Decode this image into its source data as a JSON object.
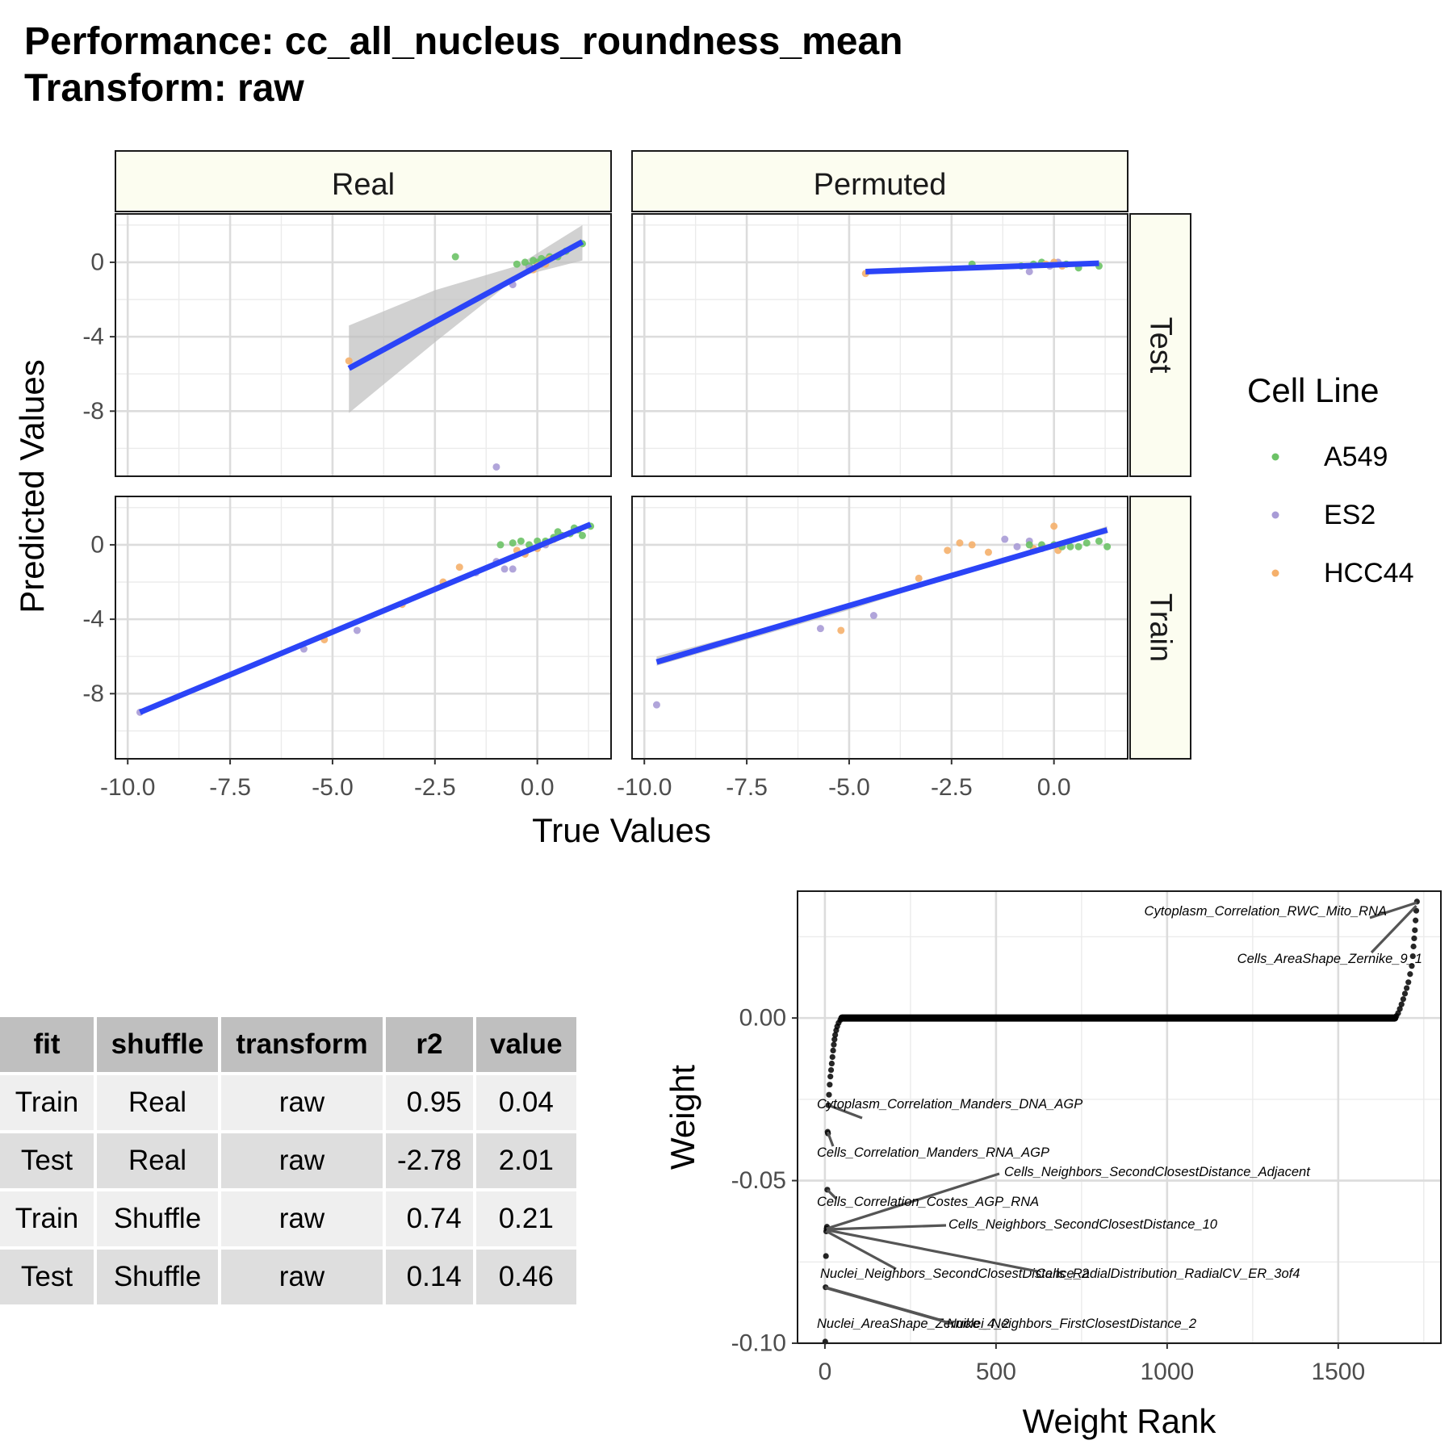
{
  "title": {
    "line1": "Performance: cc_all_nucleus_roundness_mean",
    "line2": "Transform: raw"
  },
  "colors": {
    "A549": "#6cc266",
    "ES2": "#a89bd6",
    "HCC44": "#f5b06b",
    "fit_line": "#2b44f7",
    "strip_bg": "#fcfdf0",
    "ci_band": "#bdbdbd"
  },
  "chart_data": [
    {
      "type": "scatter",
      "facet_columns": [
        "Real",
        "Permuted"
      ],
      "facet_rows": [
        "Test",
        "Train"
      ],
      "xlabel": "True Values",
      "ylabel": "Predicted Values",
      "xlim": [
        -10.3,
        1.8
      ],
      "ylim": [
        -11.5,
        2.6
      ],
      "x_ticks": [
        -10,
        -7.5,
        -5,
        -2.5,
        0
      ],
      "x_tick_labels": [
        "-10.0",
        "-7.5",
        "-5.0",
        "-2.5",
        "0.0"
      ],
      "y_ticks": [
        0,
        -4,
        -8
      ],
      "y_tick_labels": [
        "0",
        "-4",
        "-8"
      ],
      "grid": true,
      "legend": {
        "title": "Cell Line",
        "position": "right",
        "entries": [
          "A549",
          "ES2",
          "HCC44"
        ]
      },
      "panels": [
        {
          "col": "Real",
          "row": "Test",
          "points": [
            {
              "x": -2.0,
              "y": 0.3,
              "g": "A549"
            },
            {
              "x": -0.5,
              "y": -0.1,
              "g": "A549"
            },
            {
              "x": -0.3,
              "y": 0.0,
              "g": "A549"
            },
            {
              "x": -0.2,
              "y": -0.2,
              "g": "A549"
            },
            {
              "x": -0.1,
              "y": 0.1,
              "g": "A549"
            },
            {
              "x": 0.0,
              "y": 0.0,
              "g": "A549"
            },
            {
              "x": 0.1,
              "y": 0.2,
              "g": "A549"
            },
            {
              "x": 0.2,
              "y": 0.1,
              "g": "A549"
            },
            {
              "x": 0.3,
              "y": 0.3,
              "g": "A549"
            },
            {
              "x": 0.5,
              "y": 0.3,
              "g": "A549"
            },
            {
              "x": 0.7,
              "y": 0.6,
              "g": "A549"
            },
            {
              "x": 1.1,
              "y": 1.0,
              "g": "A549"
            },
            {
              "x": -0.6,
              "y": -1.2,
              "g": "ES2"
            },
            {
              "x": -0.2,
              "y": -0.3,
              "g": "ES2"
            },
            {
              "x": 0.1,
              "y": -0.1,
              "g": "ES2"
            },
            {
              "x": -1.0,
              "y": -11.0,
              "g": "ES2"
            },
            {
              "x": -4.6,
              "y": -5.3,
              "g": "HCC44"
            },
            {
              "x": -0.1,
              "y": -0.4,
              "g": "HCC44"
            },
            {
              "x": 0.0,
              "y": -0.2,
              "g": "HCC44"
            },
            {
              "x": 0.2,
              "y": -0.1,
              "g": "HCC44"
            },
            {
              "x": 0.3,
              "y": 0.2,
              "g": "HCC44"
            }
          ],
          "fit": {
            "x": [
              -4.6,
              1.1
            ],
            "y": [
              -5.7,
              1.1
            ]
          },
          "ci": [
            {
              "x": -4.6,
              "lo": -8.1,
              "hi": -3.4
            },
            {
              "x": -2.5,
              "lo": -4.3,
              "hi": -1.5
            },
            {
              "x": -0.5,
              "lo": -0.8,
              "hi": -0.2
            },
            {
              "x": 1.1,
              "lo": 0.1,
              "hi": 2.0
            }
          ]
        },
        {
          "col": "Permuted",
          "row": "Test",
          "points": [
            {
              "x": -2.0,
              "y": -0.1,
              "g": "A549"
            },
            {
              "x": -0.8,
              "y": -0.2,
              "g": "A549"
            },
            {
              "x": -0.5,
              "y": -0.1,
              "g": "A549"
            },
            {
              "x": -0.3,
              "y": 0.0,
              "g": "A549"
            },
            {
              "x": 0.0,
              "y": -0.1,
              "g": "A549"
            },
            {
              "x": 0.3,
              "y": -0.1,
              "g": "A549"
            },
            {
              "x": 0.6,
              "y": -0.3,
              "g": "A549"
            },
            {
              "x": 1.1,
              "y": -0.2,
              "g": "A549"
            },
            {
              "x": -0.6,
              "y": -0.5,
              "g": "ES2"
            },
            {
              "x": -0.1,
              "y": -0.2,
              "g": "ES2"
            },
            {
              "x": 0.1,
              "y": 0.0,
              "g": "ES2"
            },
            {
              "x": -4.6,
              "y": -0.6,
              "g": "HCC44"
            },
            {
              "x": -0.2,
              "y": -0.1,
              "g": "HCC44"
            },
            {
              "x": 0.0,
              "y": 0.0,
              "g": "HCC44"
            },
            {
              "x": 0.2,
              "y": -0.2,
              "g": "HCC44"
            }
          ],
          "fit": {
            "x": [
              -4.6,
              1.1
            ],
            "y": [
              -0.5,
              -0.05
            ]
          },
          "ci": []
        },
        {
          "col": "Real",
          "row": "Train",
          "points": [
            {
              "x": -9.7,
              "y": -9.0,
              "g": "ES2"
            },
            {
              "x": -5.7,
              "y": -5.6,
              "g": "ES2"
            },
            {
              "x": -4.4,
              "y": -4.6,
              "g": "ES2"
            },
            {
              "x": -1.5,
              "y": -1.5,
              "g": "ES2"
            },
            {
              "x": -0.8,
              "y": -1.3,
              "g": "ES2"
            },
            {
              "x": -0.6,
              "y": -1.3,
              "g": "ES2"
            },
            {
              "x": -1.0,
              "y": -0.9,
              "g": "ES2"
            },
            {
              "x": -0.3,
              "y": -0.4,
              "g": "ES2"
            },
            {
              "x": 0.2,
              "y": 0.0,
              "g": "ES2"
            },
            {
              "x": -5.2,
              "y": -5.1,
              "g": "HCC44"
            },
            {
              "x": -3.3,
              "y": -3.2,
              "g": "HCC44"
            },
            {
              "x": -2.3,
              "y": -2.0,
              "g": "HCC44"
            },
            {
              "x": -1.9,
              "y": -1.2,
              "g": "HCC44"
            },
            {
              "x": -0.5,
              "y": -0.3,
              "g": "HCC44"
            },
            {
              "x": -0.3,
              "y": -0.5,
              "g": "HCC44"
            },
            {
              "x": 0.0,
              "y": -0.2,
              "g": "HCC44"
            },
            {
              "x": 0.2,
              "y": 0.1,
              "g": "HCC44"
            },
            {
              "x": 0.4,
              "y": 0.3,
              "g": "HCC44"
            },
            {
              "x": -0.9,
              "y": 0.0,
              "g": "A549"
            },
            {
              "x": -0.6,
              "y": 0.1,
              "g": "A549"
            },
            {
              "x": -0.4,
              "y": 0.2,
              "g": "A549"
            },
            {
              "x": -0.2,
              "y": 0.0,
              "g": "A549"
            },
            {
              "x": 0.0,
              "y": 0.2,
              "g": "A549"
            },
            {
              "x": 0.2,
              "y": 0.2,
              "g": "A549"
            },
            {
              "x": 0.4,
              "y": 0.4,
              "g": "A549"
            },
            {
              "x": 0.6,
              "y": 0.5,
              "g": "A549"
            },
            {
              "x": 0.8,
              "y": 0.6,
              "g": "A549"
            },
            {
              "x": 1.0,
              "y": 0.8,
              "g": "A549"
            },
            {
              "x": 1.1,
              "y": 0.5,
              "g": "A549"
            },
            {
              "x": 1.3,
              "y": 1.0,
              "g": "A549"
            },
            {
              "x": 0.9,
              "y": 0.9,
              "g": "A549"
            },
            {
              "x": 0.5,
              "y": 0.7,
              "g": "A549"
            }
          ],
          "fit": {
            "x": [
              -9.7,
              1.3
            ],
            "y": [
              -9.0,
              1.1
            ]
          },
          "ci": []
        },
        {
          "col": "Permuted",
          "row": "Train",
          "points": [
            {
              "x": -9.7,
              "y": -8.6,
              "g": "ES2"
            },
            {
              "x": -5.7,
              "y": -4.5,
              "g": "ES2"
            },
            {
              "x": -4.4,
              "y": -3.8,
              "g": "ES2"
            },
            {
              "x": -1.2,
              "y": 0.3,
              "g": "ES2"
            },
            {
              "x": -0.9,
              "y": -0.1,
              "g": "ES2"
            },
            {
              "x": -0.6,
              "y": 0.2,
              "g": "ES2"
            },
            {
              "x": -0.3,
              "y": -0.2,
              "g": "ES2"
            },
            {
              "x": -5.2,
              "y": -4.6,
              "g": "HCC44"
            },
            {
              "x": -3.3,
              "y": -1.8,
              "g": "HCC44"
            },
            {
              "x": -2.6,
              "y": -0.3,
              "g": "HCC44"
            },
            {
              "x": -2.3,
              "y": 0.1,
              "g": "HCC44"
            },
            {
              "x": -2.0,
              "y": 0.0,
              "g": "HCC44"
            },
            {
              "x": -1.6,
              "y": -0.4,
              "g": "HCC44"
            },
            {
              "x": -0.5,
              "y": -0.2,
              "g": "HCC44"
            },
            {
              "x": 0.0,
              "y": 1.0,
              "g": "HCC44"
            },
            {
              "x": 0.1,
              "y": -0.3,
              "g": "HCC44"
            },
            {
              "x": -0.6,
              "y": 0.0,
              "g": "A549"
            },
            {
              "x": -0.3,
              "y": 0.0,
              "g": "A549"
            },
            {
              "x": 0.0,
              "y": 0.0,
              "g": "A549"
            },
            {
              "x": 0.2,
              "y": -0.1,
              "g": "A549"
            },
            {
              "x": 0.4,
              "y": -0.1,
              "g": "A549"
            },
            {
              "x": 0.6,
              "y": -0.1,
              "g": "A549"
            },
            {
              "x": 0.8,
              "y": 0.1,
              "g": "A549"
            },
            {
              "x": 1.1,
              "y": 0.2,
              "g": "A549"
            },
            {
              "x": 1.3,
              "y": -0.1,
              "g": "A549"
            }
          ],
          "fit": {
            "x": [
              -9.7,
              1.3
            ],
            "y": [
              -6.3,
              0.8
            ]
          },
          "ci": [
            {
              "x": -9.7,
              "lo": -6.5,
              "hi": -6.0
            },
            {
              "x": -5.0,
              "lo": -3.5,
              "hi": -3.3
            },
            {
              "x": 0.0,
              "lo": 0.0,
              "hi": 0.1
            },
            {
              "x": 1.3,
              "lo": 0.6,
              "hi": 1.0
            }
          ]
        }
      ]
    },
    {
      "type": "table",
      "columns": [
        "fit",
        "shuffle",
        "transform",
        "r2",
        "value"
      ],
      "rows": [
        [
          "Train",
          "Real",
          "raw",
          "0.95",
          "0.04"
        ],
        [
          "Test",
          "Real",
          "raw",
          "-2.78",
          "2.01"
        ],
        [
          "Train",
          "Shuffle",
          "raw",
          "0.74",
          "0.21"
        ],
        [
          "Test",
          "Shuffle",
          "raw",
          "0.14",
          "0.46"
        ]
      ]
    },
    {
      "type": "scatter",
      "xlabel": "Weight Rank",
      "ylabel": "Weight",
      "xlim": [
        -80,
        1800
      ],
      "ylim": [
        -0.1,
        0.039
      ],
      "x_ticks": [
        0,
        500,
        1000,
        1500
      ],
      "x_tick_labels": [
        "0",
        "500",
        "1000",
        "1500"
      ],
      "y_ticks": [
        0.0,
        -0.05,
        -0.1
      ],
      "y_tick_labels": [
        "0.00",
        "-0.05",
        "-0.10"
      ],
      "grid": true,
      "n_points": 1731,
      "negative_tail": [
        {
          "x": 1,
          "y": -0.0995
        },
        {
          "x": 2,
          "y": -0.0828
        },
        {
          "x": 3,
          "y": -0.0732
        },
        {
          "x": 4,
          "y": -0.0656
        },
        {
          "x": 5,
          "y": -0.0648
        },
        {
          "x": 6,
          "y": -0.0642
        },
        {
          "x": 7,
          "y": -0.0528
        },
        {
          "x": 8,
          "y": -0.035
        },
        {
          "x": 9,
          "y": -0.0355
        },
        {
          "x": 10,
          "y": -0.0268
        },
        {
          "x": 12,
          "y": -0.0236
        },
        {
          "x": 14,
          "y": -0.0205
        },
        {
          "x": 16,
          "y": -0.018
        },
        {
          "x": 18,
          "y": -0.016
        },
        {
          "x": 20,
          "y": -0.014
        },
        {
          "x": 22,
          "y": -0.012
        },
        {
          "x": 24,
          "y": -0.01
        },
        {
          "x": 26,
          "y": -0.0082
        },
        {
          "x": 28,
          "y": -0.0066
        },
        {
          "x": 30,
          "y": -0.0052
        },
        {
          "x": 33,
          "y": -0.0038
        },
        {
          "x": 36,
          "y": -0.0026
        },
        {
          "x": 40,
          "y": -0.0015
        },
        {
          "x": 45,
          "y": -0.0006
        },
        {
          "x": 50,
          "y": 0.0
        }
      ],
      "positive_tail": [
        {
          "x": 1665,
          "y": 0.0
        },
        {
          "x": 1670,
          "y": 0.0006
        },
        {
          "x": 1675,
          "y": 0.0015
        },
        {
          "x": 1680,
          "y": 0.0028
        },
        {
          "x": 1685,
          "y": 0.0042
        },
        {
          "x": 1690,
          "y": 0.0058
        },
        {
          "x": 1695,
          "y": 0.0075
        },
        {
          "x": 1700,
          "y": 0.0092
        },
        {
          "x": 1705,
          "y": 0.011
        },
        {
          "x": 1710,
          "y": 0.0135
        },
        {
          "x": 1715,
          "y": 0.016
        },
        {
          "x": 1718,
          "y": 0.019
        },
        {
          "x": 1720,
          "y": 0.022
        },
        {
          "x": 1722,
          "y": 0.0245
        },
        {
          "x": 1724,
          "y": 0.027
        },
        {
          "x": 1726,
          "y": 0.03
        },
        {
          "x": 1728,
          "y": 0.033
        },
        {
          "x": 1730,
          "y": 0.0358
        }
      ],
      "labels": [
        {
          "text": "Cytoplasm_Correlation_RWC_Mito_RNA",
          "x": 1730,
          "y": 0.0355
        },
        {
          "text": "Cells_AreaShape_Zernike_9_1",
          "x": 1728,
          "y": 0.0345
        },
        {
          "text": "Cytoplasm_Correlation_Manders_DNA_AGP",
          "x": 10,
          "y": -0.0268
        },
        {
          "text": "Cells_Correlation_Manders_RNA_AGP",
          "x": 8,
          "y": -0.035
        },
        {
          "text": "Cells_Neighbors_SecondClosestDistance_Adjacent",
          "x": 4,
          "y": -0.0648
        },
        {
          "text": "Cells_Correlation_Costes_AGP_RNA",
          "x": 7,
          "y": -0.0528
        },
        {
          "text": "Cells_Neighbors_SecondClosestDistance_10",
          "x": 5,
          "y": -0.065
        },
        {
          "text": "Nuclei_Neighbors_SecondClosestDistance_2",
          "x": 3,
          "y": -0.0655
        },
        {
          "text": "Cells_RadialDistribution_RadialCV_ER_3of4",
          "x": 6,
          "y": -0.0652
        },
        {
          "text": "Nuclei_AreaShape_Zernike_4_2",
          "x": 1,
          "y": -0.0828
        },
        {
          "text": "Nuclei_Neighbors_FirstClosestDistance_2",
          "x": 2,
          "y": -0.083
        }
      ]
    }
  ]
}
